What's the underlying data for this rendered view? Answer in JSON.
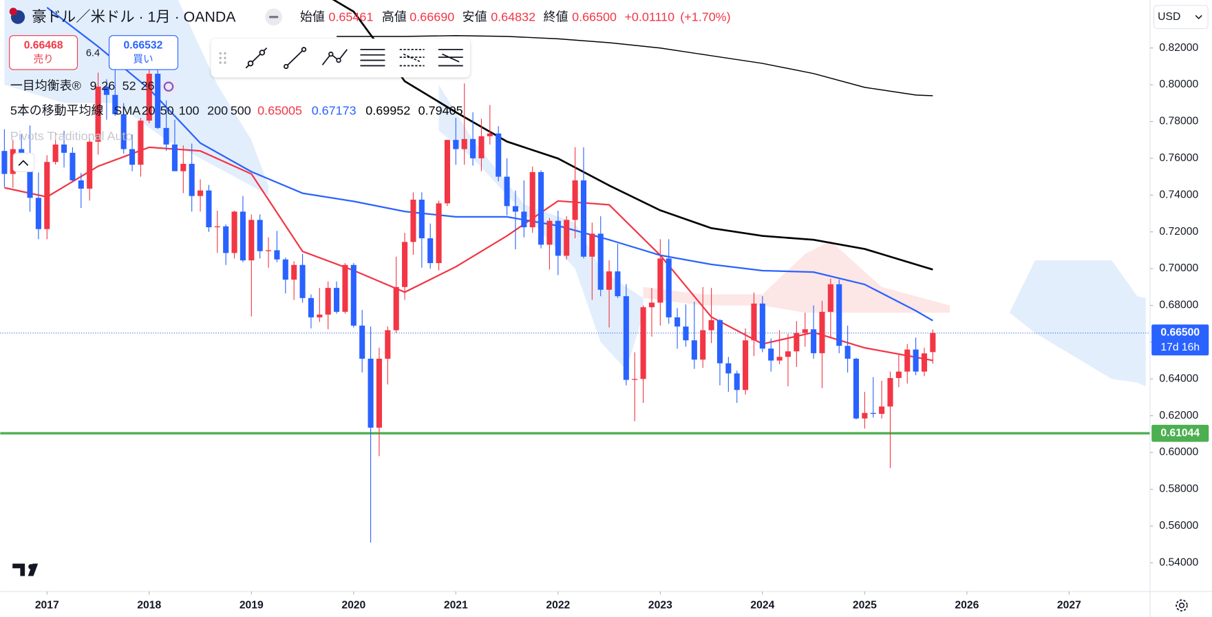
{
  "chart_data": {
    "type": "candlestick",
    "title": "豪ドル／米ドル · 1月 · OANDA",
    "ohlc_legend": {
      "labels": [
        "始値",
        "高値",
        "安値",
        "終値"
      ],
      "values": [
        {
          "value": 0.65461,
          "label": "0.65461"
        },
        {
          "value": 0.6669,
          "label": "0.66690"
        },
        {
          "value": 0.64832,
          "label": "0.64832"
        },
        {
          "value": 0.665,
          "label": "0.66500"
        }
      ],
      "change": {
        "value": 0.0111,
        "label": "+0.01110"
      },
      "change_pct": {
        "value": 1.7,
        "label": "(+1.70%)"
      }
    },
    "order": {
      "sell": {
        "value": 0.66468,
        "label": "0.66468",
        "text": "売り"
      },
      "spread": 6.4,
      "buy": {
        "value": 0.66532,
        "label": "0.66532",
        "text": "買い"
      }
    },
    "ichimoku_legend": {
      "label": "一目均衡表®",
      "params": [
        9,
        26,
        52,
        26
      ]
    },
    "sma_legend": {
      "label": "5本の移動平均線",
      "study": "SMA",
      "periods": [
        20,
        50,
        100,
        200,
        500
      ],
      "last_values": [
        0.65005,
        0.67173,
        0.69952,
        0.79405
      ]
    },
    "pivots_label": "Pivots Traditional Auto",
    "currency": "USD",
    "up_color": "#f23645",
    "down_color": "#2962ff",
    "x": [
      "2016-08",
      "2016-09",
      "2016-10",
      "2016-11",
      "2016-12",
      "2017-01",
      "2017-02",
      "2017-03",
      "2017-04",
      "2017-05",
      "2017-06",
      "2017-07",
      "2017-08",
      "2017-09",
      "2017-10",
      "2017-11",
      "2017-12",
      "2018-01",
      "2018-02",
      "2018-03",
      "2018-04",
      "2018-05",
      "2018-06",
      "2018-07",
      "2018-08",
      "2018-09",
      "2018-10",
      "2018-11",
      "2018-12",
      "2019-01",
      "2019-02",
      "2019-03",
      "2019-04",
      "2019-05",
      "2019-06",
      "2019-07",
      "2019-08",
      "2019-09",
      "2019-10",
      "2019-11",
      "2019-12",
      "2020-01",
      "2020-02",
      "2020-03",
      "2020-04",
      "2020-05",
      "2020-06",
      "2020-07",
      "2020-08",
      "2020-09",
      "2020-10",
      "2020-11",
      "2020-12",
      "2021-01",
      "2021-02",
      "2021-03",
      "2021-04",
      "2021-05",
      "2021-06",
      "2021-07",
      "2021-08",
      "2021-09",
      "2021-10",
      "2021-11",
      "2021-12",
      "2022-01",
      "2022-02",
      "2022-03",
      "2022-04",
      "2022-05",
      "2022-06",
      "2022-07",
      "2022-08",
      "2022-09",
      "2022-10",
      "2022-11",
      "2022-12",
      "2023-01",
      "2023-02",
      "2023-03",
      "2023-04",
      "2023-05",
      "2023-06",
      "2023-07",
      "2023-08",
      "2023-09",
      "2023-10",
      "2023-11",
      "2023-12",
      "2024-01",
      "2024-02",
      "2024-03",
      "2024-04",
      "2024-05",
      "2024-06",
      "2024-07",
      "2024-08",
      "2024-09",
      "2024-10",
      "2024-11",
      "2024-12",
      "2025-01",
      "2025-02",
      "2025-03",
      "2025-04",
      "2025-05",
      "2025-06",
      "2025-07",
      "2025-08",
      "2025-09"
    ],
    "open": [
      0.764,
      0.7515,
      0.765,
      0.761,
      0.7385,
      0.7215,
      0.758,
      0.7675,
      0.763,
      0.748,
      0.7435,
      0.769,
      0.799,
      0.7945,
      0.784,
      0.765,
      0.7565,
      0.7805,
      0.806,
      0.7765,
      0.7675,
      0.753,
      0.757,
      0.7395,
      0.7425,
      0.7225,
      0.723,
      0.7085,
      0.731,
      0.7045,
      0.7265,
      0.7095,
      0.71,
      0.705,
      0.694,
      0.702,
      0.684,
      0.6735,
      0.675,
      0.6895,
      0.6765,
      0.702,
      0.669,
      0.651,
      0.6135,
      0.651,
      0.6665,
      0.69,
      0.7145,
      0.7375,
      0.7165,
      0.703,
      0.7355,
      0.77,
      0.765,
      0.7705,
      0.76,
      0.772,
      0.7735,
      0.75,
      0.734,
      0.731,
      0.7225,
      0.7525,
      0.713,
      0.726,
      0.707,
      0.7265,
      0.748,
      0.7065,
      0.719,
      0.6885,
      0.6985,
      0.685,
      0.6395,
      0.64,
      0.679,
      0.6815,
      0.7055,
      0.6735,
      0.6685,
      0.661,
      0.6505,
      0.6665,
      0.672,
      0.6485,
      0.643,
      0.634,
      0.661,
      0.681,
      0.6565,
      0.65,
      0.652,
      0.655,
      0.665,
      0.667,
      0.654,
      0.6765,
      0.6915,
      0.658,
      0.651,
      0.6185,
      0.6215,
      0.621,
      0.625,
      0.6405,
      0.644,
      0.656,
      0.644,
      0.65461
    ],
    "high": [
      0.7758,
      0.77,
      0.7733,
      0.7779,
      0.7523,
      0.7617,
      0.774,
      0.775,
      0.766,
      0.752,
      0.771,
      0.8066,
      0.803,
      0.8125,
      0.79,
      0.773,
      0.782,
      0.8136,
      0.81,
      0.7915,
      0.781,
      0.767,
      0.768,
      0.7485,
      0.7455,
      0.7315,
      0.724,
      0.7315,
      0.7395,
      0.7295,
      0.7295,
      0.717,
      0.7205,
      0.706,
      0.704,
      0.708,
      0.686,
      0.6895,
      0.693,
      0.693,
      0.703,
      0.703,
      0.6775,
      0.6685,
      0.657,
      0.6685,
      0.7065,
      0.7195,
      0.7415,
      0.7415,
      0.7245,
      0.737,
      0.77,
      0.782,
      0.8007,
      0.785,
      0.7815,
      0.789,
      0.7775,
      0.76,
      0.7425,
      0.748,
      0.7555,
      0.7535,
      0.7275,
      0.7315,
      0.7285,
      0.766,
      0.766,
      0.725,
      0.7285,
      0.7045,
      0.7135,
      0.6915,
      0.6545,
      0.68,
      0.6895,
      0.716,
      0.716,
      0.6785,
      0.6805,
      0.682,
      0.69,
      0.6895,
      0.6725,
      0.652,
      0.6445,
      0.6675,
      0.687,
      0.685,
      0.662,
      0.6665,
      0.6645,
      0.6715,
      0.676,
      0.68,
      0.6825,
      0.6945,
      0.694,
      0.669,
      0.6515,
      0.633,
      0.641,
      0.639,
      0.644,
      0.6535,
      0.659,
      0.6625,
      0.657,
      0.6669
    ],
    "low": [
      0.7443,
      0.744,
      0.7543,
      0.731,
      0.716,
      0.716,
      0.7566,
      0.755,
      0.747,
      0.733,
      0.737,
      0.762,
      0.781,
      0.783,
      0.7625,
      0.753,
      0.75,
      0.779,
      0.776,
      0.764,
      0.753,
      0.741,
      0.731,
      0.731,
      0.72,
      0.7085,
      0.702,
      0.7055,
      0.7035,
      0.674,
      0.7055,
      0.7005,
      0.7035,
      0.6865,
      0.683,
      0.6815,
      0.6675,
      0.671,
      0.667,
      0.6755,
      0.6755,
      0.668,
      0.6435,
      0.551,
      0.598,
      0.637,
      0.665,
      0.683,
      0.7075,
      0.7005,
      0.7,
      0.699,
      0.734,
      0.7565,
      0.7565,
      0.756,
      0.753,
      0.7675,
      0.7475,
      0.729,
      0.7105,
      0.717,
      0.7195,
      0.711,
      0.6995,
      0.6965,
      0.705,
      0.7165,
      0.7055,
      0.683,
      0.685,
      0.668,
      0.684,
      0.6365,
      0.617,
      0.627,
      0.663,
      0.669,
      0.67,
      0.6565,
      0.6575,
      0.6455,
      0.646,
      0.6595,
      0.6365,
      0.633,
      0.627,
      0.6315,
      0.6525,
      0.6545,
      0.644,
      0.648,
      0.636,
      0.6465,
      0.6575,
      0.651,
      0.635,
      0.662,
      0.654,
      0.6435,
      0.618,
      0.613,
      0.619,
      0.6185,
      0.5915,
      0.6355,
      0.6375,
      0.642,
      0.6415,
      0.64832
    ],
    "close": [
      0.7515,
      0.765,
      0.761,
      0.7385,
      0.7215,
      0.758,
      0.7675,
      0.763,
      0.748,
      0.7435,
      0.769,
      0.799,
      0.7945,
      0.784,
      0.765,
      0.7565,
      0.7805,
      0.806,
      0.7765,
      0.7675,
      0.753,
      0.757,
      0.7395,
      0.7425,
      0.7225,
      0.723,
      0.7085,
      0.731,
      0.7045,
      0.7265,
      0.7095,
      0.71,
      0.705,
      0.694,
      0.702,
      0.684,
      0.6735,
      0.675,
      0.6895,
      0.6765,
      0.702,
      0.669,
      0.651,
      0.6135,
      0.651,
      0.6665,
      0.69,
      0.7145,
      0.7375,
      0.7165,
      0.703,
      0.7355,
      0.77,
      0.765,
      0.7705,
      0.76,
      0.772,
      0.7735,
      0.75,
      0.734,
      0.731,
      0.7225,
      0.7525,
      0.713,
      0.726,
      0.707,
      0.7265,
      0.748,
      0.7065,
      0.719,
      0.6885,
      0.6985,
      0.685,
      0.6395,
      0.64,
      0.679,
      0.6815,
      0.7055,
      0.6735,
      0.6685,
      0.661,
      0.6505,
      0.6665,
      0.672,
      0.6485,
      0.643,
      0.634,
      0.661,
      0.681,
      0.6565,
      0.65,
      0.652,
      0.655,
      0.665,
      0.667,
      0.654,
      0.6765,
      0.6915,
      0.658,
      0.651,
      0.6185,
      0.6215,
      0.621,
      0.625,
      0.6405,
      0.644,
      0.656,
      0.644,
      0.6539,
      0.665
    ],
    "sma_lines": [
      {
        "color": "#f23645",
        "width": 2,
        "x": [
          "2016-08",
          "2017-01",
          "2017-07",
          "2018-01",
          "2018-07",
          "2019-01",
          "2019-07",
          "2020-01",
          "2020-07",
          "2021-01",
          "2021-07",
          "2022-01",
          "2022-07",
          "2023-01",
          "2023-07",
          "2024-01",
          "2024-07",
          "2025-01",
          "2025-07",
          "2025-09"
        ],
        "values": [
          0.744,
          0.739,
          0.7557,
          0.766,
          0.764,
          0.7515,
          0.7094,
          0.699,
          0.6872,
          0.701,
          0.7178,
          0.7368,
          0.7347,
          0.7073,
          0.6737,
          0.659,
          0.6653,
          0.6569,
          0.6518,
          0.65005
        ]
      },
      {
        "color": "#2962ff",
        "width": 2,
        "x": [
          "2017-01",
          "2017-07",
          "2018-01",
          "2018-07",
          "2019-01",
          "2019-07",
          "2020-01",
          "2020-07",
          "2021-01",
          "2021-07",
          "2022-01",
          "2022-07",
          "2023-01",
          "2023-07",
          "2024-01",
          "2024-07",
          "2025-01",
          "2025-07",
          "2025-09"
        ],
        "values": [
          0.842,
          0.8208,
          0.7977,
          0.7683,
          0.7527,
          0.741,
          0.7366,
          0.7311,
          0.7282,
          0.7282,
          0.7233,
          0.7157,
          0.7073,
          0.7023,
          0.6989,
          0.6981,
          0.6914,
          0.6771,
          0.67173
        ]
      },
      {
        "color": "#000000",
        "width": 2.4,
        "x": [
          "2019-10",
          "2020-01",
          "2020-07",
          "2021-01",
          "2021-07",
          "2022-01",
          "2022-07",
          "2023-01",
          "2023-07",
          "2024-01",
          "2024-07",
          "2025-01",
          "2025-07",
          "2025-09"
        ],
        "values": [
          0.848,
          0.8398,
          0.8019,
          0.7851,
          0.7691,
          0.7599,
          0.7452,
          0.7317,
          0.722,
          0.7178,
          0.7157,
          0.7107,
          0.7023,
          0.69952
        ]
      },
      {
        "color": "#000000",
        "width": 1.3,
        "x": [
          "2019-11",
          "2020-07",
          "2021-01",
          "2021-07",
          "2022-01",
          "2022-07",
          "2023-01",
          "2023-07",
          "2024-01",
          "2024-07",
          "2025-01",
          "2025-07",
          "2025-09"
        ],
        "values": [
          0.8263,
          0.8263,
          0.8267,
          0.8263,
          0.825,
          0.8229,
          0.82,
          0.8158,
          0.8116,
          0.8061,
          0.7986,
          0.7944,
          0.79405
        ]
      }
    ],
    "cloud": [
      {
        "color": "#e3eefc",
        "x": [
          "2016-08",
          "2017-03",
          "2017-09",
          "2018-03",
          "2018-09",
          "2019-01",
          "2019-03"
        ],
        "upper": [
          0.86,
          0.86,
          0.86,
          0.86,
          0.8,
          0.77,
          0.745
        ],
        "lower": [
          0.8,
          0.79,
          0.79,
          0.77,
          0.755,
          0.745,
          0.74
        ]
      },
      {
        "color": "#e3eefc",
        "x": [
          "2020-11",
          "2021-03",
          "2021-09",
          "2022-03",
          "2022-06",
          "2022-09",
          "2022-11"
        ],
        "upper": [
          0.8,
          0.77,
          0.735,
          0.725,
          0.7,
          0.69,
          0.684
        ],
        "lower": [
          0.775,
          0.76,
          0.73,
          0.7,
          0.66,
          0.645,
          0.675
        ]
      },
      {
        "color": "#fde6e6",
        "x": [
          "2022-11",
          "2023-06",
          "2024-01",
          "2024-06",
          "2024-09",
          "2025-03",
          "2025-11"
        ],
        "upper": [
          0.69,
          0.686,
          0.686,
          0.708,
          0.715,
          0.69,
          0.68
        ],
        "lower": [
          0.684,
          0.68,
          0.68,
          0.676,
          0.676,
          0.676,
          0.676
        ]
      },
      {
        "color": "#e3eefc",
        "x": [
          "2025-11",
          "2026-06",
          "2026-09",
          "2027-06",
          "2027-09",
          "2027-10"
        ],
        "upper": [
          0.676,
          0.676,
          0.7045,
          0.7045,
          0.685,
          0.684
        ],
        "lower": [
          0.676,
          0.676,
          0.665,
          0.64,
          0.638,
          0.636
        ]
      }
    ],
    "hlines": [
      {
        "value": 0.61044,
        "label": "0.61044",
        "color": "#4caf50"
      }
    ],
    "last_price": {
      "value": 0.665,
      "label": "0.66500",
      "countdown": "17d 16h",
      "color": "#2962ff"
    },
    "ylim": [
      0.5244,
      0.8461
    ],
    "yticks": [
      {
        "value": 0.54,
        "label": "0.54000"
      },
      {
        "value": 0.56,
        "label": "0.56000"
      },
      {
        "value": 0.58,
        "label": "0.58000"
      },
      {
        "value": 0.6,
        "label": "0.60000"
      },
      {
        "value": 0.62,
        "label": "0.62000"
      },
      {
        "value": 0.64,
        "label": "0.64000"
      },
      {
        "value": 0.66,
        "label": "0.66000"
      },
      {
        "value": 0.68,
        "label": "0.68000"
      },
      {
        "value": 0.7,
        "label": "0.70000"
      },
      {
        "value": 0.72,
        "label": "0.72000"
      },
      {
        "value": 0.74,
        "label": "0.74000"
      },
      {
        "value": 0.76,
        "label": "0.76000"
      },
      {
        "value": 0.78,
        "label": "0.78000"
      },
      {
        "value": 0.8,
        "label": "0.80000"
      },
      {
        "value": 0.82,
        "label": "0.82000"
      }
    ],
    "xlim": [
      "2016-08",
      "2027-10"
    ],
    "xticks": [
      "2017",
      "2018",
      "2019",
      "2020",
      "2021",
      "2022",
      "2023",
      "2024",
      "2025",
      "2026",
      "2027"
    ]
  }
}
